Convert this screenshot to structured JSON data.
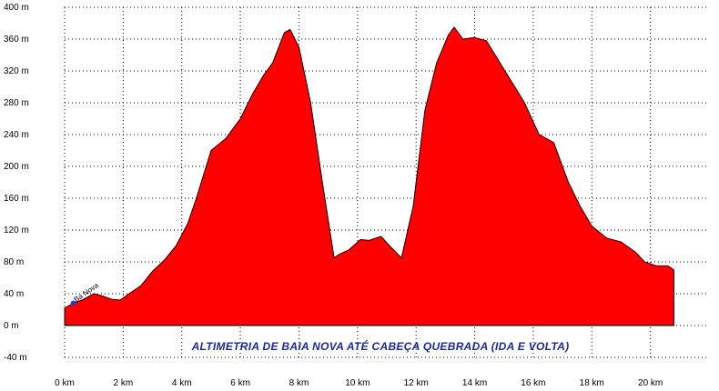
{
  "chart_data": {
    "type": "area",
    "title": "ALTIMETRIA DE BAIA NOVA ATÉ CABEÇA QUEBRADA (IDA E VOLTA)",
    "xlabel": "",
    "ylabel": "",
    "xlim": [
      0,
      22
    ],
    "ylim": [
      -40,
      400
    ],
    "grid": true,
    "x_ticks": [
      0,
      2,
      4,
      6,
      8,
      10,
      12,
      14,
      16,
      18,
      20
    ],
    "x_tick_labels": [
      "0 km",
      "2 km",
      "4 km",
      "6 km",
      "8 km",
      "10 km",
      "12 km",
      "14 km",
      "16 km",
      "18 km",
      "20 km"
    ],
    "y_ticks": [
      -40,
      0,
      40,
      80,
      120,
      160,
      200,
      240,
      280,
      320,
      360,
      400
    ],
    "y_tick_labels": [
      "-40 m",
      "0 m",
      "40 m",
      "80 m",
      "120 m",
      "160 m",
      "200 m",
      "240 m",
      "280 m",
      "320 m",
      "360 m",
      "400 m"
    ],
    "fill_color": "#ff0000",
    "line_color": "#000000",
    "grid_color": "#000000",
    "title_color": "#1a2a9a",
    "marker": {
      "label": "Ba Nova",
      "x": 0.3,
      "y": 28,
      "color": "#1f3fd0"
    },
    "series": [
      {
        "x": [
          0.0,
          0.3,
          0.6,
          1.0,
          1.3,
          1.6,
          1.9,
          2.2,
          2.6,
          3.0,
          3.4,
          3.8,
          4.2,
          4.5,
          5.0,
          5.5,
          6.0,
          6.4,
          6.8,
          7.1,
          7.5,
          7.7,
          8.0,
          8.4,
          8.8,
          9.2,
          9.4,
          9.7,
          10.1,
          10.4,
          10.8,
          11.1,
          11.5,
          11.9,
          12.3,
          12.7,
          13.1,
          13.3,
          13.6,
          14.0,
          14.4,
          14.7,
          15.2,
          15.7,
          16.2,
          16.7,
          17.2,
          17.6,
          18.0,
          18.5,
          19.0,
          19.5,
          19.8,
          20.2,
          20.6,
          20.8
        ],
        "y": [
          22,
          28,
          32,
          40,
          37,
          33,
          32,
          40,
          50,
          68,
          82,
          100,
          128,
          160,
          220,
          235,
          260,
          290,
          315,
          330,
          368,
          372,
          350,
          280,
          180,
          85,
          90,
          95,
          108,
          107,
          112,
          100,
          85,
          150,
          270,
          330,
          365,
          375,
          360,
          362,
          358,
          340,
          310,
          280,
          240,
          230,
          180,
          150,
          125,
          110,
          105,
          92,
          80,
          75,
          75,
          70
        ]
      }
    ]
  }
}
